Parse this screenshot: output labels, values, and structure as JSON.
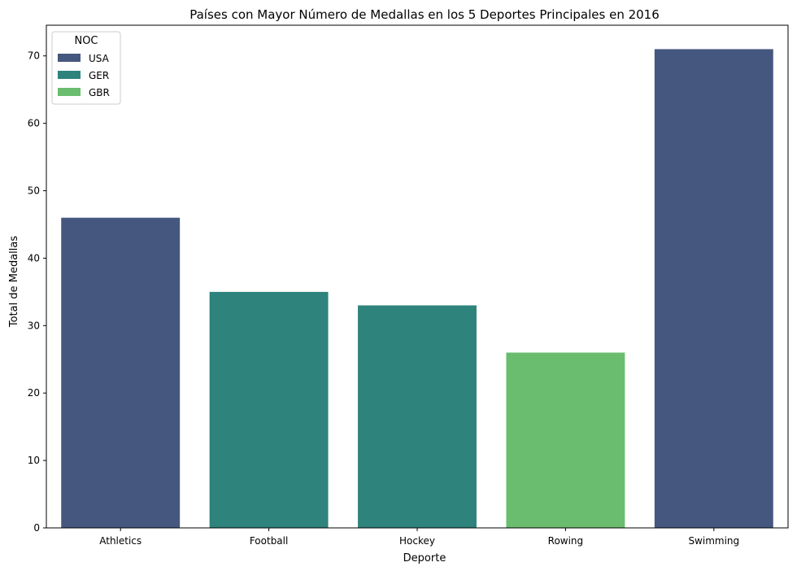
{
  "chart_data": {
    "type": "bar",
    "title": "Países con Mayor Número de Medallas en los 5 Deportes Principales en 2016",
    "xlabel": "Deporte",
    "ylabel": "Total de Medallas",
    "categories": [
      "Athletics",
      "Football",
      "Hockey",
      "Rowing",
      "Swimming"
    ],
    "values": [
      46,
      35,
      33,
      26,
      71
    ],
    "bar_noc": [
      "USA",
      "GER",
      "GER",
      "GBR",
      "USA"
    ],
    "ylim": [
      0,
      74.55
    ],
    "yticks": [
      0,
      10,
      20,
      30,
      40,
      50,
      60,
      70
    ],
    "grid": false,
    "legend": {
      "title": "NOC",
      "placement": "top-left",
      "entries": [
        {
          "name": "USA",
          "color": "#46577f"
        },
        {
          "name": "GER",
          "color": "#2e837c"
        },
        {
          "name": "GBR",
          "color": "#6abd6e"
        }
      ]
    }
  }
}
